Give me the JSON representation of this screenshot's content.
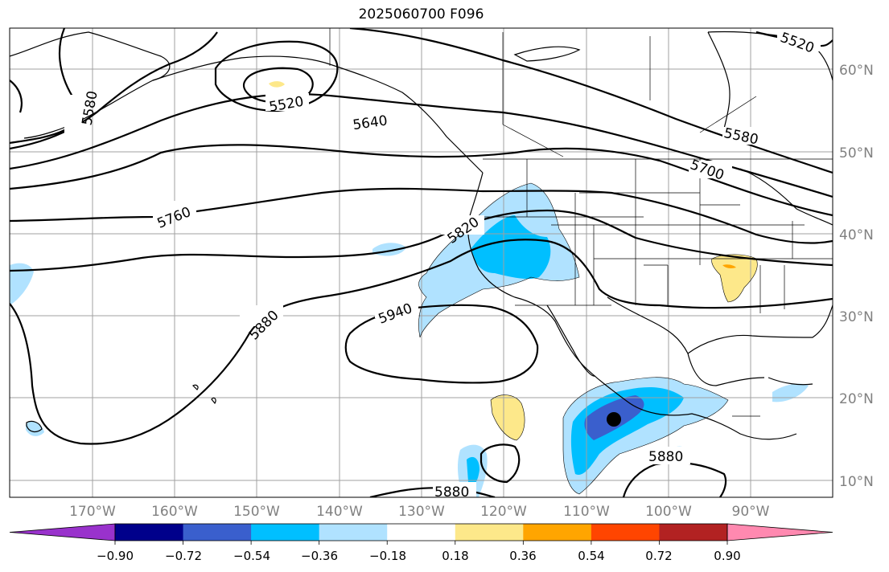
{
  "title": "2025060700 F096",
  "lat_labels": [
    "60°N",
    "50°N",
    "40°N",
    "30°N",
    "20°N",
    "10°N"
  ],
  "lon_labels": [
    "170°W",
    "160°W",
    "150°W",
    "140°W",
    "130°W",
    "120°W",
    "110°W",
    "100°W",
    "90°W"
  ],
  "contour_labels": [
    "5520",
    "5520",
    "5580",
    "5580",
    "5640",
    "5700",
    "5760",
    "5820",
    "5880",
    "5880",
    "5880",
    "5940"
  ],
  "colorbar": {
    "ticks": [
      "−0.90",
      "−0.72",
      "−0.54",
      "−0.36",
      "−0.18",
      "0.18",
      "0.36",
      "0.54",
      "0.72",
      "0.90"
    ],
    "colors": [
      "#9932cc",
      "#00008b",
      "#3a5fcd",
      "#00bfff",
      "#b0e2ff",
      "#ffffff",
      "#fde88a",
      "#ffa500",
      "#ff4500",
      "#b22222",
      "#ff89b0"
    ]
  },
  "marker": "black-dot"
}
